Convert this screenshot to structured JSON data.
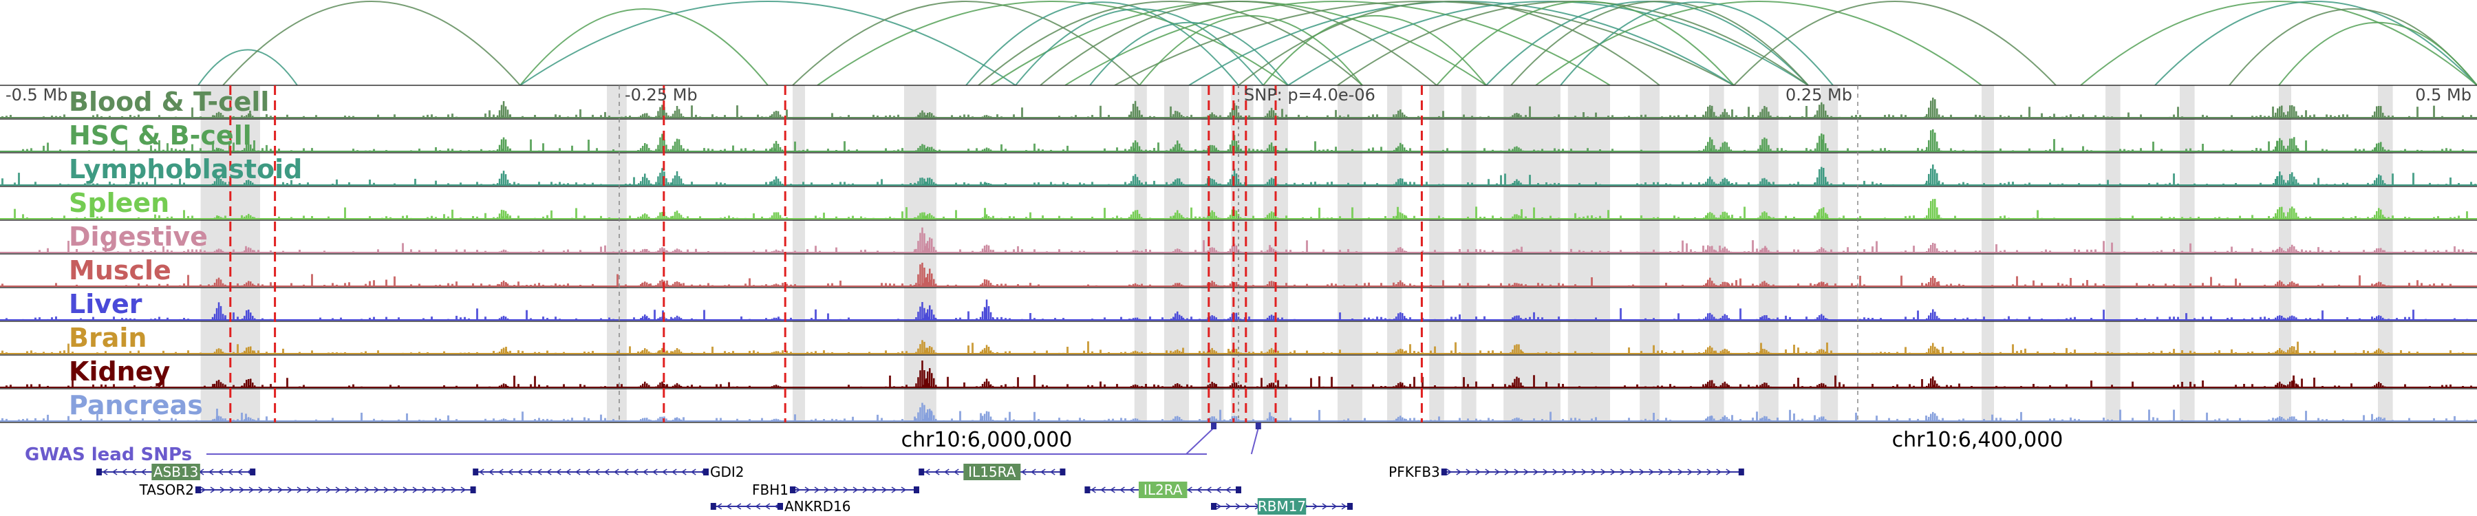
{
  "chart_data": {
    "type": "area",
    "title": "",
    "region": {
      "start": 5600000,
      "end": 6600000
    },
    "scale_labels": [
      {
        "text": "-0.5 Mb",
        "pos": 5600000,
        "anchor": "start"
      },
      {
        "text": "-0.25 Mb",
        "pos": 5850000,
        "anchor": "start"
      },
      {
        "text": "0.25 Mb",
        "pos": 6350000,
        "anchor": "end"
      },
      {
        "text": "0.5 Mb",
        "pos": 6600000,
        "anchor": "end"
      }
    ],
    "lead_snp": {
      "label": "SNP: p=4.0e-06",
      "pos": 6100000
    },
    "coordinate_labels": [
      {
        "text": "chr10:6,000,000",
        "pos": 6000000
      },
      {
        "text": "chr10:6,400,000",
        "pos": 6400000
      }
    ],
    "tracks": [
      {
        "name": "Blood & T-cell",
        "color": "#5e8c5a"
      },
      {
        "name": "HSC & B-cell",
        "color": "#55a157"
      },
      {
        "name": "Lymphoblastoid",
        "color": "#3e9a82"
      },
      {
        "name": "Spleen",
        "color": "#74cc52"
      },
      {
        "name": "Digestive",
        "color": "#cc8aa0"
      },
      {
        "name": "Muscle",
        "color": "#c65e5e"
      },
      {
        "name": "Liver",
        "color": "#4a4ad8"
      },
      {
        "name": "Brain",
        "color": "#c8962e"
      },
      {
        "name": "Kidney",
        "color": "#6a0000"
      },
      {
        "name": "Pancreas",
        "color": "#86a0dd"
      }
    ],
    "red_marks": [
      5693000,
      5711000,
      5868000,
      5917000,
      6088000,
      6098000,
      6103000,
      6115000,
      6174000
    ],
    "highlight_regions": [
      [
        5681000,
        5705000
      ],
      [
        5845000,
        5853000
      ],
      [
        5920000,
        5925000
      ],
      [
        5965000,
        5978000
      ],
      [
        6058000,
        6063000
      ],
      [
        6070000,
        6080000
      ],
      [
        6085000,
        6094000
      ],
      [
        6097000,
        6106000
      ],
      [
        6110000,
        6120000
      ],
      [
        6140000,
        6150000
      ],
      [
        6160000,
        6166000
      ],
      [
        6177000,
        6183000
      ],
      [
        6190000,
        6196000
      ],
      [
        6207000,
        6230000
      ],
      [
        6233000,
        6250000
      ],
      [
        6262000,
        6270000
      ],
      [
        6290000,
        6296000
      ],
      [
        6310000,
        6318000
      ],
      [
        6335000,
        6342000
      ],
      [
        6400000,
        6405000
      ],
      [
        6450000,
        6456000
      ],
      [
        6480000,
        6486000
      ],
      [
        6520000,
        6525000
      ],
      [
        6560000,
        6566000
      ]
    ],
    "peaks": [
      {
        "pos": 5688000,
        "h": [
          0.2,
          0.15,
          0.3,
          0.1,
          0.15,
          0.3,
          0.6,
          0.2,
          0.3,
          0.2
        ]
      },
      {
        "pos": 5700000,
        "h": [
          0.15,
          0.3,
          0.2,
          0.2,
          0.2,
          0.2,
          0.4,
          0.3,
          0.4,
          0.15
        ]
      },
      {
        "pos": 5803000,
        "h": [
          0.6,
          0.5,
          0.5,
          0.4,
          0.1,
          0.2,
          0.15,
          0.2,
          0.15,
          0.1
        ]
      },
      {
        "pos": 5860000,
        "h": [
          0.2,
          0.3,
          0.4,
          0.2,
          0.15,
          0.2,
          0.2,
          0.2,
          0.2,
          0.15
        ]
      },
      {
        "pos": 5867000,
        "h": [
          0.5,
          0.6,
          0.7,
          0.3,
          0.2,
          0.3,
          0.15,
          0.2,
          0.2,
          0.2
        ]
      },
      {
        "pos": 5873000,
        "h": [
          0.4,
          0.5,
          0.5,
          0.3,
          0.15,
          0.2,
          0.15,
          0.2,
          0.15,
          0.15
        ]
      },
      {
        "pos": 5913000,
        "h": [
          0.3,
          0.4,
          0.3,
          0.3,
          0.1,
          0.1,
          0.1,
          0.1,
          0.1,
          0.1
        ]
      },
      {
        "pos": 5972000,
        "h": [
          0.25,
          0.3,
          0.3,
          0.3,
          0.95,
          0.95,
          0.7,
          0.5,
          0.95,
          0.8
        ]
      },
      {
        "pos": 5975000,
        "h": [
          0.2,
          0.2,
          0.3,
          0.2,
          0.6,
          0.7,
          0.5,
          0.3,
          0.7,
          0.5
        ]
      },
      {
        "pos": 5998000,
        "h": [
          0.1,
          0.15,
          0.1,
          0.15,
          0.3,
          0.3,
          0.7,
          0.3,
          0.3,
          0.4
        ]
      },
      {
        "pos": 6058000,
        "h": [
          0.6,
          0.5,
          0.4,
          0.4,
          0.1,
          0.1,
          0.1,
          0.1,
          0.1,
          0.1
        ]
      },
      {
        "pos": 6075000,
        "h": [
          0.3,
          0.4,
          0.3,
          0.3,
          0.15,
          0.15,
          0.3,
          0.15,
          0.15,
          0.2
        ]
      },
      {
        "pos": 6089000,
        "h": [
          0.2,
          0.3,
          0.3,
          0.3,
          0.2,
          0.2,
          0.2,
          0.2,
          0.2,
          0.2
        ]
      },
      {
        "pos": 6098000,
        "h": [
          0.5,
          0.6,
          0.6,
          0.4,
          0.3,
          0.2,
          0.3,
          0.2,
          0.2,
          0.2
        ]
      },
      {
        "pos": 6113000,
        "h": [
          0.4,
          0.3,
          0.3,
          0.3,
          0.2,
          0.2,
          0.2,
          0.2,
          0.2,
          0.2
        ]
      },
      {
        "pos": 6165000,
        "h": [
          0.3,
          0.3,
          0.3,
          0.3,
          0.2,
          0.2,
          0.3,
          0.2,
          0.2,
          0.2
        ]
      },
      {
        "pos": 6212000,
        "h": [
          0.2,
          0.2,
          0.2,
          0.2,
          0.15,
          0.15,
          0.2,
          0.4,
          0.4,
          0.15
        ]
      },
      {
        "pos": 6290000,
        "h": [
          0.5,
          0.5,
          0.3,
          0.3,
          0.3,
          0.3,
          0.3,
          0.3,
          0.3,
          0.2
        ]
      },
      {
        "pos": 6296000,
        "h": [
          0.3,
          0.4,
          0.3,
          0.3,
          0.2,
          0.2,
          0.2,
          0.2,
          0.2,
          0.2
        ]
      },
      {
        "pos": 6312000,
        "h": [
          0.5,
          0.6,
          0.3,
          0.3,
          0.2,
          0.2,
          0.2,
          0.2,
          0.2,
          0.2
        ]
      },
      {
        "pos": 6335000,
        "h": [
          0.7,
          0.7,
          0.8,
          0.5,
          0.2,
          0.2,
          0.2,
          0.2,
          0.2,
          0.2
        ]
      },
      {
        "pos": 6380000,
        "h": [
          0.9,
          0.9,
          0.9,
          0.9,
          0.4,
          0.4,
          0.4,
          0.4,
          0.4,
          0.4
        ]
      },
      {
        "pos": 6520000,
        "h": [
          0.5,
          0.5,
          0.5,
          0.5,
          0.2,
          0.2,
          0.2,
          0.2,
          0.2,
          0.2
        ]
      },
      {
        "pos": 6525000,
        "h": [
          0.6,
          0.6,
          0.5,
          0.5,
          0.3,
          0.2,
          0.2,
          0.3,
          0.3,
          0.2
        ]
      },
      {
        "pos": 6560000,
        "h": [
          0.5,
          0.4,
          0.4,
          0.4,
          0.2,
          0.2,
          0.2,
          0.2,
          0.2,
          0.2
        ]
      }
    ],
    "loops": [
      [
        5680000,
        5720000
      ],
      [
        5690000,
        5810000
      ],
      [
        5810000,
        5910000
      ],
      [
        5810000,
        6010000
      ],
      [
        5920000,
        6060000
      ],
      [
        5930000,
        6120000
      ],
      [
        5990000,
        6100000
      ],
      [
        5995000,
        6150000
      ],
      [
        6000000,
        6200000
      ],
      [
        6010000,
        6110000
      ],
      [
        6020000,
        6180000
      ],
      [
        6030000,
        6250000
      ],
      [
        6040000,
        6120000
      ],
      [
        6050000,
        6300000
      ],
      [
        6060000,
        6150000
      ],
      [
        6080000,
        6300000
      ],
      [
        6100000,
        6270000
      ],
      [
        6110000,
        6200000
      ],
      [
        6120000,
        6330000
      ],
      [
        6140000,
        6330000
      ],
      [
        6180000,
        6300000
      ],
      [
        6200000,
        6330000
      ],
      [
        6210000,
        6330000
      ],
      [
        6220000,
        6400000
      ],
      [
        6230000,
        6340000
      ],
      [
        6300000,
        6430000
      ],
      [
        6440000,
        6600000
      ],
      [
        6470000,
        6600000
      ],
      [
        6500000,
        6600000
      ],
      [
        6520000,
        6600000
      ]
    ],
    "gwas": {
      "label": "GWAS lead SNPs",
      "snps": [
        6090000,
        6108000
      ]
    },
    "genes": [
      {
        "name": "ASB13",
        "start": 5640000,
        "end": 5702000,
        "strand": "-",
        "row": 0,
        "label_pos": "box",
        "box_color": "#5e8c5a"
      },
      {
        "name": "TASOR2",
        "start": 5680000,
        "end": 5791000,
        "strand": "+",
        "row": 1,
        "label_pos": "left"
      },
      {
        "name": "GDI2",
        "start": 5792000,
        "end": 5885000,
        "strand": "-",
        "row": 0,
        "label_pos": "right"
      },
      {
        "name": "FBH1",
        "start": 5920000,
        "end": 5970000,
        "strand": "+",
        "row": 1,
        "label_pos": "left"
      },
      {
        "name": "ANKRD16",
        "start": 5888000,
        "end": 5915000,
        "strand": "-",
        "row": 2,
        "label_pos": "right"
      },
      {
        "name": "IL15RA",
        "start": 5972000,
        "end": 6029000,
        "strand": "-",
        "row": 0,
        "label_pos": "box",
        "box_color": "#5e8c5a"
      },
      {
        "name": "IL2RA",
        "start": 6039000,
        "end": 6100000,
        "strand": "-",
        "row": 1,
        "label_pos": "box",
        "box_color": "#74bb60"
      },
      {
        "name": "RBM17",
        "start": 6090000,
        "end": 6145000,
        "strand": "+",
        "row": 2,
        "label_pos": "box",
        "box_color": "#3e9a82"
      },
      {
        "name": "PFKFB3",
        "start": 6183000,
        "end": 6303000,
        "strand": "+",
        "row": 0,
        "label_pos": "left"
      }
    ]
  }
}
